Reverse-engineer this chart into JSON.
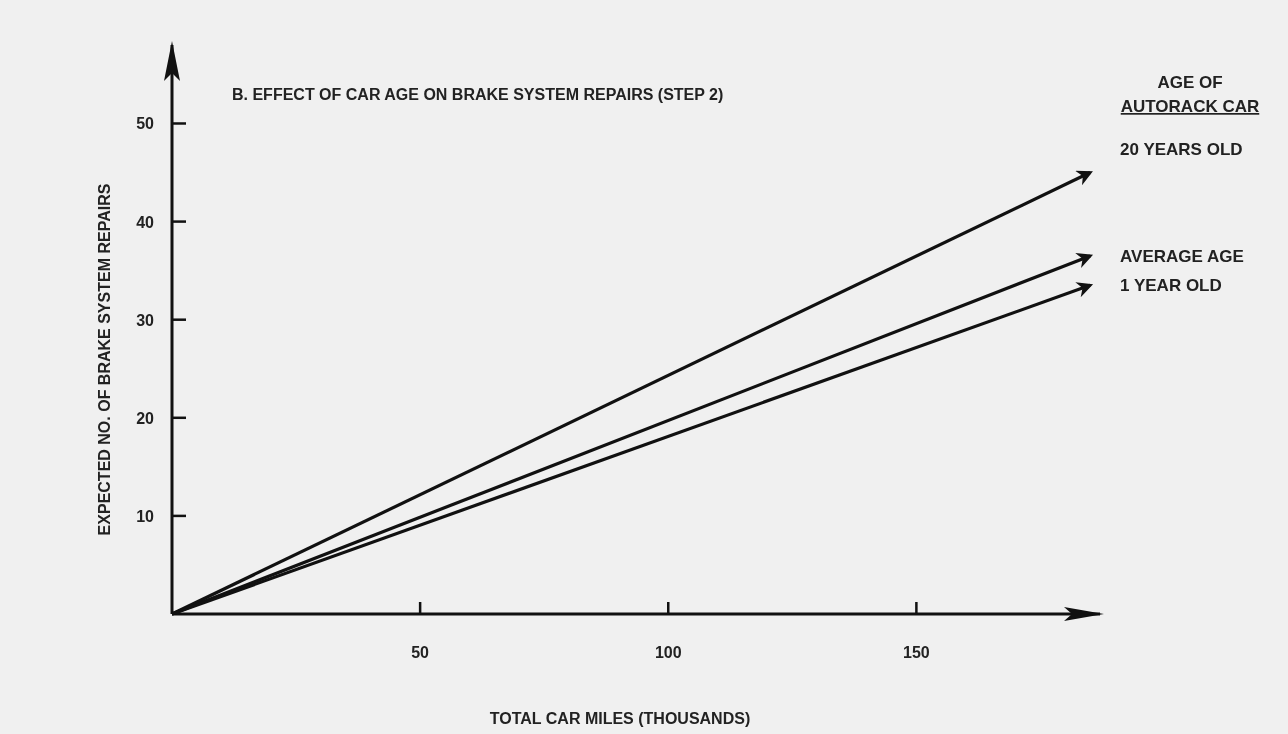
{
  "chart_data": {
    "type": "line",
    "title": "B. EFFECT OF CAR AGE ON BRAKE SYSTEM REPAIRS (STEP 2)",
    "xlabel": "TOTAL CAR MILES (THOUSANDS)",
    "ylabel": "EXPECTED NO. OF BRAKE SYSTEM REPAIRS",
    "legend_title": "AGE OF AUTORACK CAR",
    "x": [
      0,
      185
    ],
    "series": [
      {
        "name": "20 YEARS OLD",
        "color": "#111111",
        "values": [
          0,
          45
        ]
      },
      {
        "name": "AVERAGE AGE",
        "color": "#111111",
        "values": [
          0,
          36.5
        ]
      },
      {
        "name": "1 YEAR OLD",
        "color": "#111111",
        "values": [
          0,
          33.5
        ]
      }
    ],
    "xlim": [
      0,
      187
    ],
    "ylim": [
      0,
      58
    ],
    "xticks": [
      50,
      100,
      150
    ],
    "yticks": [
      10,
      20,
      30,
      40,
      50
    ],
    "grid": false,
    "legend": false,
    "marker": "none",
    "line_style": "solid"
  }
}
